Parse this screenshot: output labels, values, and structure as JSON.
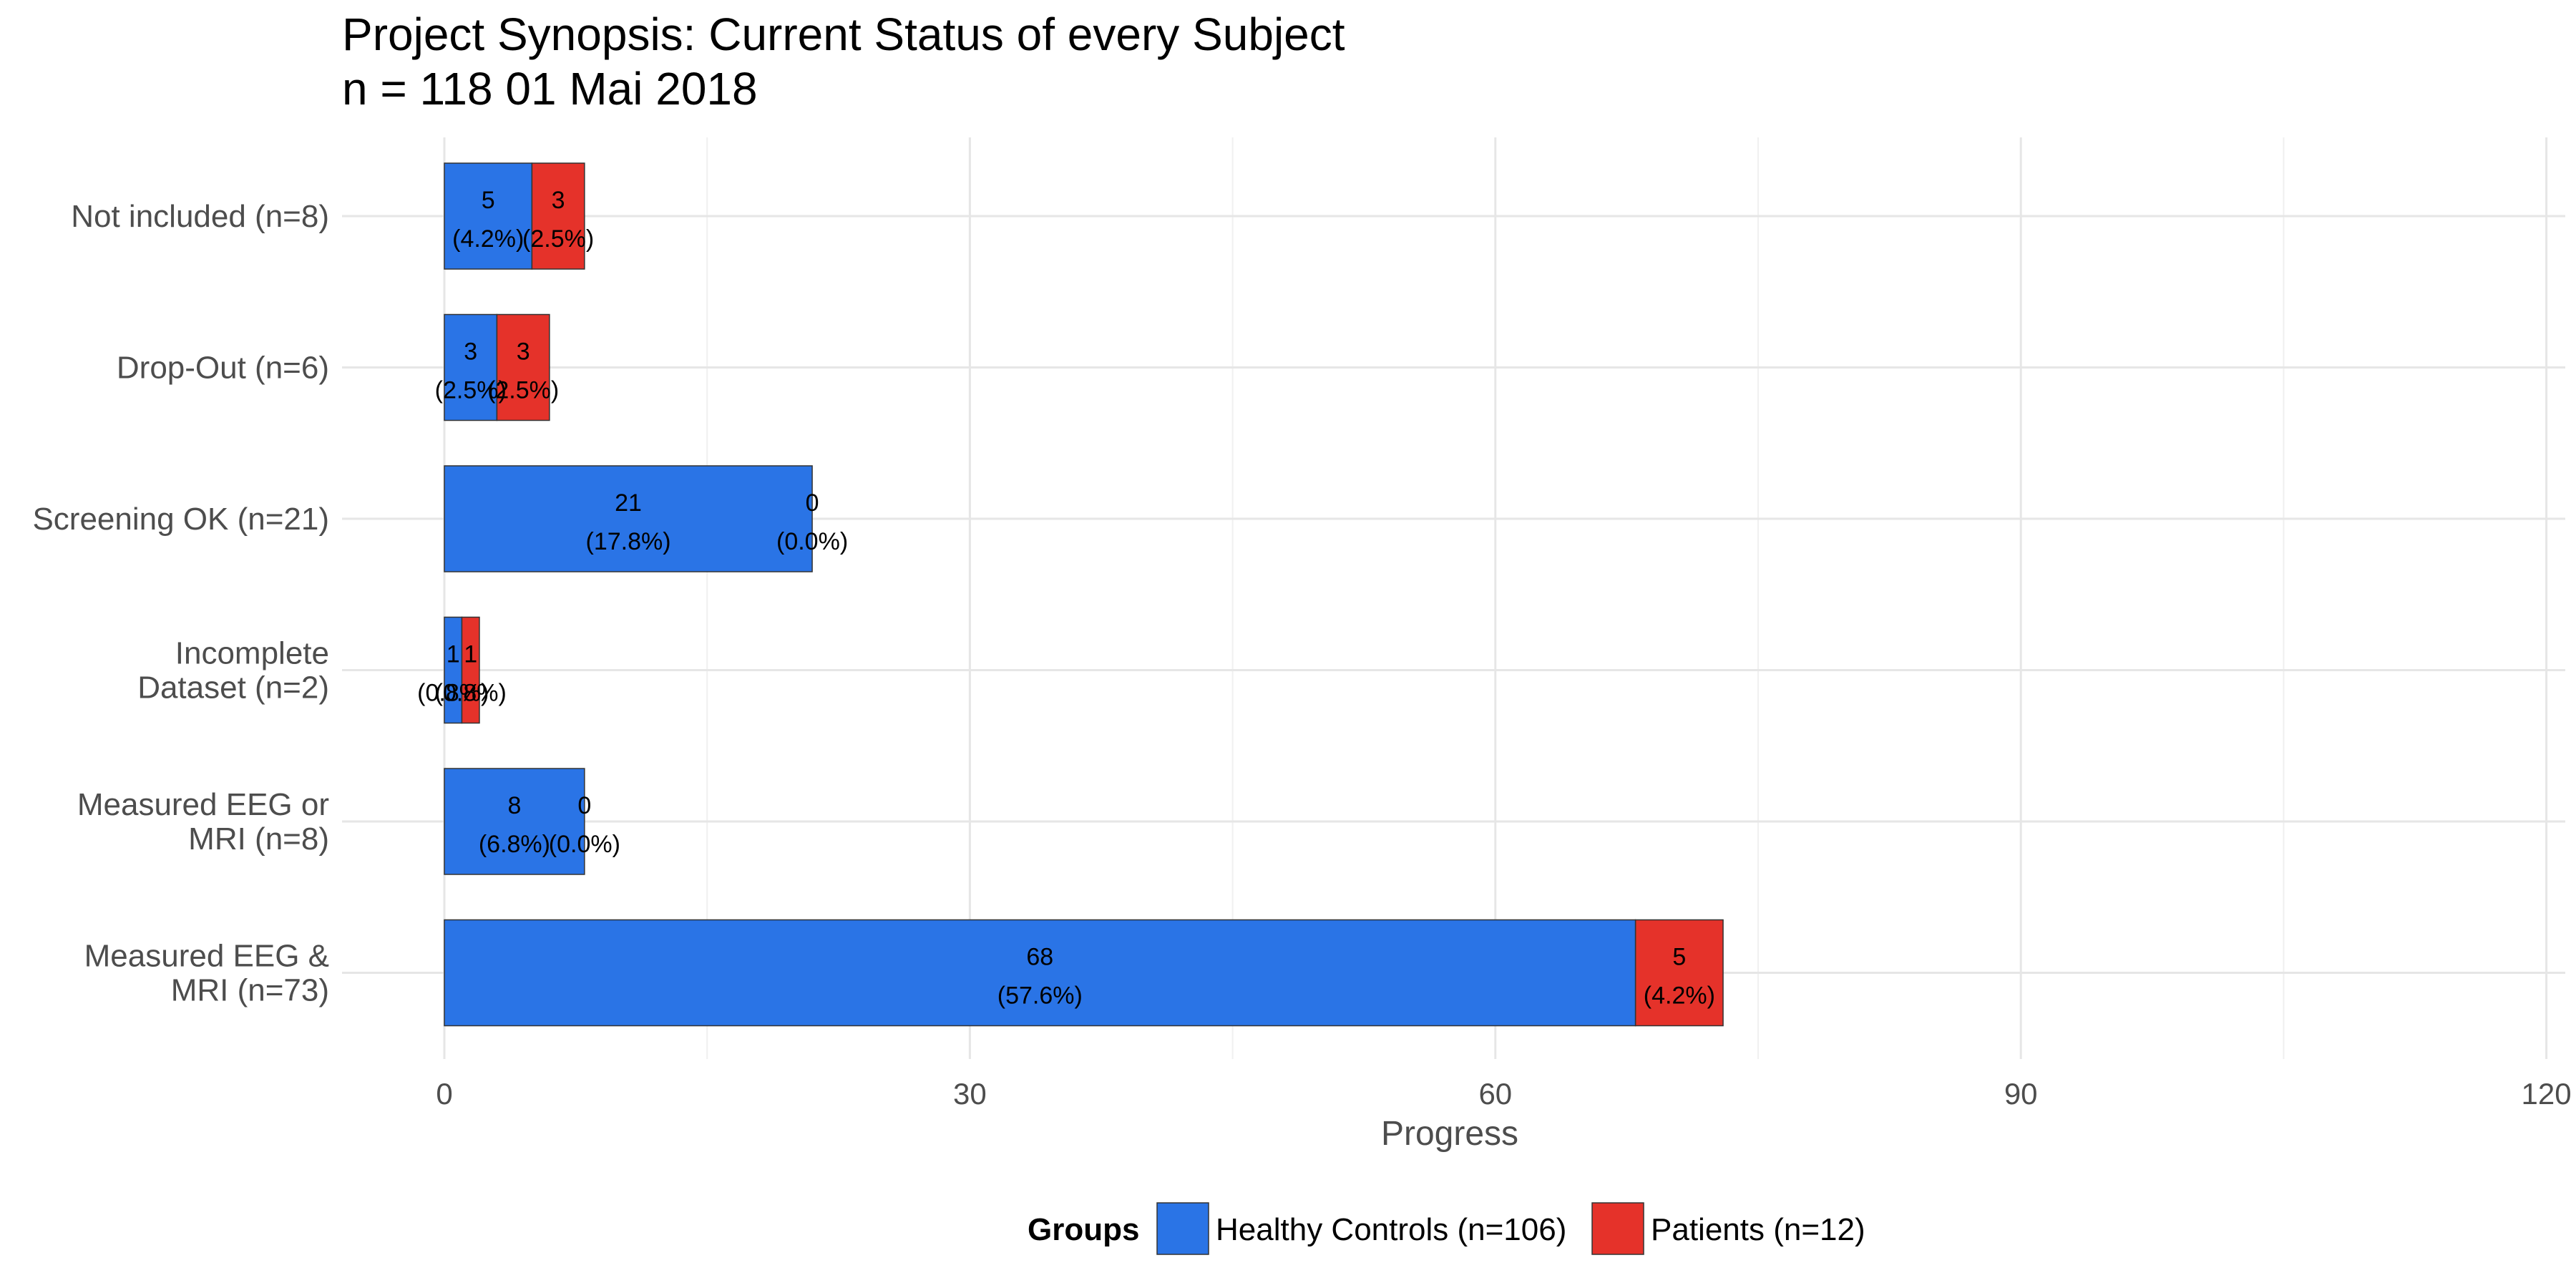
{
  "chart_data": {
    "type": "bar",
    "orientation": "horizontal",
    "stacked": true,
    "title": "Project Synopsis: Current Status of every Subject",
    "subtitle": "n = 118   01 Mai 2018",
    "xlabel": "Progress",
    "ylabel": "",
    "xlim": [
      0,
      120
    ],
    "x_ticks": [
      0,
      30,
      60,
      90,
      120
    ],
    "grid": true,
    "legend": {
      "title": "Groups",
      "position": "bottom",
      "entries": [
        "Healthy Controls (n=106)",
        "Patients (n=12)"
      ]
    },
    "categories": [
      [
        "Not included (n=8)"
      ],
      [
        "Drop-Out (n=6)"
      ],
      [
        "Screening OK (n=21)"
      ],
      [
        "Incomplete",
        "Dataset (n=2)"
      ],
      [
        "Measured EEG or",
        "MRI  (n=8)"
      ],
      [
        "Measured EEG &",
        "MRI  (n=73)"
      ]
    ],
    "series": [
      {
        "name": "Healthy Controls (n=106)",
        "color": "#2a74e6",
        "values": [
          5,
          3,
          21,
          1,
          8,
          68
        ],
        "labels": [
          [
            "5",
            "(4.2%)"
          ],
          [
            "3",
            "(2.5%)"
          ],
          [
            "21",
            "(17.8%)"
          ],
          [
            "1",
            "(0.8%)"
          ],
          [
            "8",
            "(6.8%)"
          ],
          [
            "68",
            "(57.6%)"
          ]
        ]
      },
      {
        "name": "Patients (n=12)",
        "color": "#e5322a",
        "values": [
          3,
          3,
          0,
          1,
          0,
          5
        ],
        "labels": [
          [
            "3",
            "(2.5%)"
          ],
          [
            "3",
            "(2.5%)"
          ],
          [
            "0",
            "(0.0%)"
          ],
          [
            "1",
            "(0.8%)"
          ],
          [
            "0",
            "(0.0%)"
          ],
          [
            "5",
            "(4.2%)"
          ]
        ]
      }
    ]
  }
}
